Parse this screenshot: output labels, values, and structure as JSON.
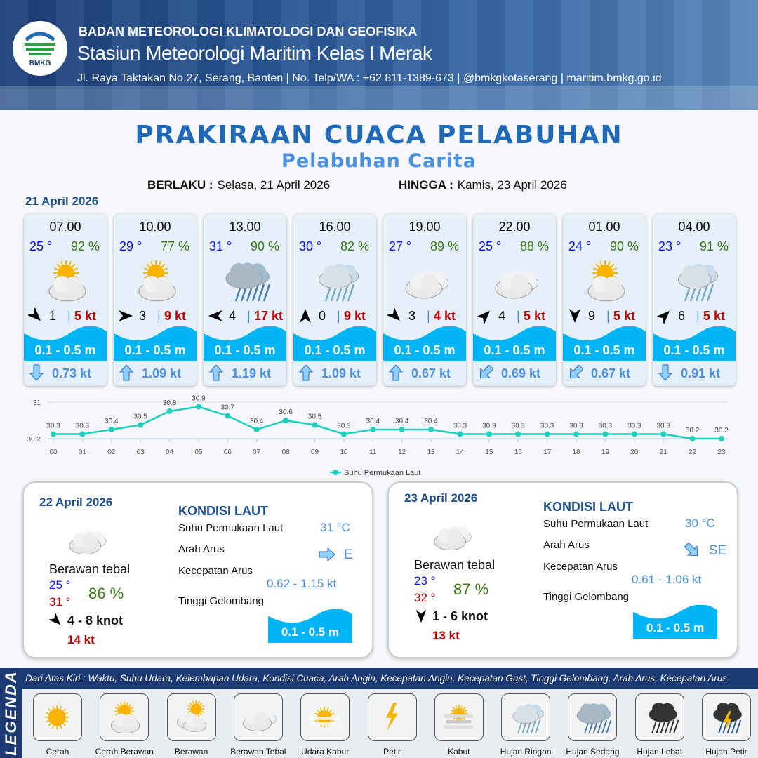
{
  "header": {
    "logo_text": "BMKG",
    "agency": "BADAN METEOROLOGI KLIMATOLOGI DAN GEOFISIKA",
    "station": "Stasiun Meteorologi Maritim Kelas I Merak",
    "contact": "Jl. Raya Taktakan No.27, Serang, Banten | No. Telp/WA : +62 811-1389-673 | @bmkgkotaserang | maritim.bmkg.go.id"
  },
  "title": "PRAKIRAAN CUACA PELABUHAN",
  "subtitle": "Pelabuhan Carita",
  "validity": {
    "from_label": "BERLAKU :",
    "from": "Selasa, 21 April 2026",
    "to_label": "HINGGA :",
    "to": "Kamis, 23 April 2026"
  },
  "day1_label": "21 April 2026",
  "colors": {
    "temp": "#0a14f0",
    "humidity": "#3c7a12",
    "gust": "#c00000",
    "wave": "#00b4f5",
    "current": "#4a90e0",
    "title": "#1f69b8"
  },
  "forecasts": [
    {
      "time": "07.00",
      "temp": "25 °",
      "hum": "92 %",
      "icon": "cerah-berawan",
      "wind_dir_deg": 135,
      "wind": "1",
      "gust": "5 kt",
      "wave": "0.1 - 0.5 m",
      "cur_dir_deg": 180,
      "cur": "0.73 kt"
    },
    {
      "time": "10.00",
      "temp": "29 °",
      "hum": "77 %",
      "icon": "cerah-berawan",
      "wind_dir_deg": 90,
      "wind": "3",
      "gust": "9 kt",
      "wave": "0.1 - 0.5 m",
      "cur_dir_deg": 0,
      "cur": "1.09 kt"
    },
    {
      "time": "13.00",
      "temp": "31 °",
      "hum": "90 %",
      "icon": "hujan-sedang",
      "wind_dir_deg": 270,
      "wind": "4",
      "gust": "17 kt",
      "wave": "0.1 - 0.5 m",
      "cur_dir_deg": 0,
      "cur": "1.19 kt"
    },
    {
      "time": "16.00",
      "temp": "30 °",
      "hum": "82 %",
      "icon": "hujan-ringan",
      "wind_dir_deg": 0,
      "wind": "0",
      "gust": "9 kt",
      "wave": "0.1 - 0.5 m",
      "cur_dir_deg": 0,
      "cur": "1.09 kt"
    },
    {
      "time": "19.00",
      "temp": "27 °",
      "hum": "89 %",
      "icon": "berawan-tebal",
      "wind_dir_deg": 135,
      "wind": "3",
      "gust": "4 kt",
      "wave": "0.1 - 0.5 m",
      "cur_dir_deg": 0,
      "cur": "0.67 kt"
    },
    {
      "time": "22.00",
      "temp": "25 °",
      "hum": "88 %",
      "icon": "berawan-tebal",
      "wind_dir_deg": 45,
      "wind": "4",
      "gust": "5 kt",
      "wave": "0.1 - 0.5 m",
      "cur_dir_deg": 225,
      "cur": "0.69 kt"
    },
    {
      "time": "01.00",
      "temp": "24 °",
      "hum": "90 %",
      "icon": "cerah-berawan",
      "wind_dir_deg": 180,
      "wind": "9",
      "gust": "5 kt",
      "wave": "0.1 - 0.5 m",
      "cur_dir_deg": 225,
      "cur": "0.67 kt"
    },
    {
      "time": "04.00",
      "temp": "23 °",
      "hum": "91 %",
      "icon": "hujan-ringan",
      "wind_dir_deg": 45,
      "wind": "6",
      "gust": "5 kt",
      "wave": "0.1 - 0.5 m",
      "cur_dir_deg": 180,
      "cur": "0.91 kt"
    }
  ],
  "chart_data": {
    "type": "line",
    "x": [
      "00",
      "01",
      "02",
      "03",
      "04",
      "05",
      "06",
      "07",
      "08",
      "09",
      "10",
      "11",
      "12",
      "13",
      "14",
      "15",
      "16",
      "17",
      "18",
      "19",
      "20",
      "21",
      "22",
      "23"
    ],
    "series": [
      {
        "name": "Suhu Permukaan Laut",
        "values": [
          30.3,
          30.3,
          30.4,
          30.5,
          30.8,
          30.9,
          30.7,
          30.4,
          30.6,
          30.5,
          30.3,
          30.4,
          30.4,
          30.4,
          30.3,
          30.3,
          30.3,
          30.3,
          30.3,
          30.3,
          30.3,
          30.3,
          30.2,
          30.2
        ],
        "color": "#1fcfbf"
      }
    ],
    "yticks": [
      "30.2",
      "31"
    ],
    "ylim": [
      30.2,
      31
    ],
    "legend": "bottom",
    "data_labels": true
  },
  "days": [
    {
      "date": "22 April 2026",
      "cond": "Berawan tebal",
      "tmin": "25 °",
      "tmax": "31 °",
      "hum": "86 %",
      "wind_dir_deg": 135,
      "wind": "4 - 8 knot",
      "gust": "14 kt",
      "sea_title": "KONDISI LAUT",
      "sst_label": "Suhu Permukaan Laut",
      "sst": "31 °C",
      "cur_dir_label": "Arah Arus",
      "cur_dir_deg": 90,
      "cur_dir": "E",
      "cur_spd_label": "Kecepatan Arus",
      "cur_spd": "0.62 - 1.15 kt",
      "wave_label": "Tinggi Gelombang",
      "wave": "0.1 - 0.5 m"
    },
    {
      "date": "23 April 2026",
      "cond": "Berawan tebal",
      "tmin": "23 °",
      "tmax": "32 °",
      "hum": "87 %",
      "wind_dir_deg": 180,
      "wind": "1 - 6 knot",
      "gust": "13 kt",
      "sea_title": "KONDISI LAUT",
      "sst_label": "Suhu Permukaan Laut",
      "sst": "30 °C",
      "cur_dir_label": "Arah Arus",
      "cur_dir_deg": 135,
      "cur_dir": "SE",
      "cur_spd_label": "Kecepatan Arus",
      "cur_spd": "0.61 - 1.06 kt",
      "wave_label": "Tinggi Gelombang",
      "wave": "0.1 - 0.5 m"
    }
  ],
  "legend": {
    "title": "LEGENDA",
    "description": "Dari Atas Kiri : Waktu, Suhu Udara, Kelembapan Udara, Kondisi Cuaca, Arah Angin, Kecepatan Angin, Kecepatan Gust, Tinggi Gelombang, Arah Arus, Kecepatan Arus",
    "items": [
      {
        "label": "Cerah",
        "icon": "cerah"
      },
      {
        "label": "Cerah Berawan",
        "icon": "cerah-berawan"
      },
      {
        "label": "Berawan",
        "icon": "berawan"
      },
      {
        "label": "Berawan Tebal",
        "icon": "berawan-tebal"
      },
      {
        "label": "Udara Kabur",
        "icon": "udara-kabur"
      },
      {
        "label": "Petir",
        "icon": "petir"
      },
      {
        "label": "Kabut",
        "icon": "kabut"
      },
      {
        "label": "Hujan Ringan",
        "icon": "hujan-ringan"
      },
      {
        "label": "Hujan Sedang",
        "icon": "hujan-sedang"
      },
      {
        "label": "Hujan Lebat",
        "icon": "hujan-lebat"
      },
      {
        "label": "Hujan Petir",
        "icon": "hujan-petir"
      }
    ]
  }
}
